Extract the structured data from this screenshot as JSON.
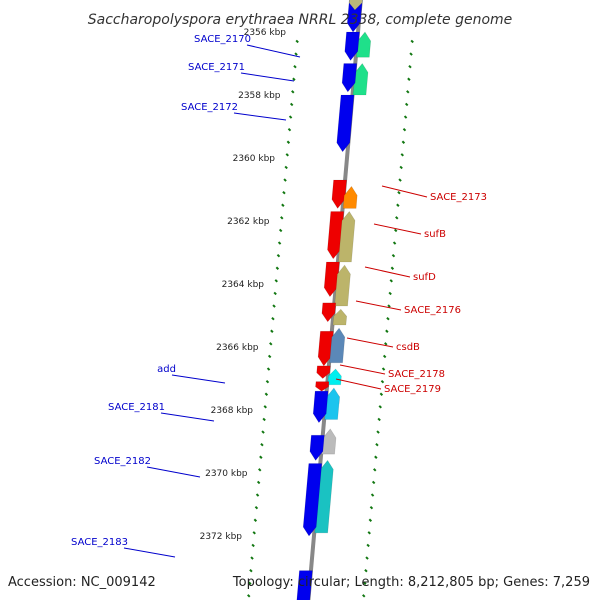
{
  "title": "Saccharopolyspora erythraea NRRL 2338, complete genome",
  "accession": "Accession: NC_009142",
  "topology": "Topology: circular; Length: 8,212,805 bp; Genes: 7,259",
  "colors": {
    "backbone": "#888888",
    "tick": "#117711",
    "label_left": "#0000cc",
    "label_right": "#cc0000",
    "leader_left": "#0000cc",
    "leader_right": "#cc0000"
  },
  "kbp_ticks": [
    {
      "text": "2356 kbp",
      "kb": 2356
    },
    {
      "text": "2358 kbp",
      "kb": 2358
    },
    {
      "text": "2360 kbp",
      "kb": 2360
    },
    {
      "text": "2362 kbp",
      "kb": 2362
    },
    {
      "text": "2364 kbp",
      "kb": 2364
    },
    {
      "text": "2366 kbp",
      "kb": 2366
    },
    {
      "text": "2368 kbp",
      "kb": 2368
    },
    {
      "text": "2370 kbp",
      "kb": 2370
    },
    {
      "text": "2372 kbp",
      "kb": 2372
    }
  ],
  "left_labels": [
    {
      "text": "SACE_2170"
    },
    {
      "text": "SACE_2171"
    },
    {
      "text": "SACE_2172"
    },
    {
      "text": "add"
    },
    {
      "text": "SACE_2181"
    },
    {
      "text": "SACE_2182"
    },
    {
      "text": "SACE_2183"
    }
  ],
  "right_labels": [
    {
      "text": "SACE_2173"
    },
    {
      "text": "sufB"
    },
    {
      "text": "sufD"
    },
    {
      "text": "SACE_2176"
    },
    {
      "text": "csdB"
    },
    {
      "text": "SACE_2178"
    },
    {
      "text": "SACE_2179"
    }
  ],
  "features": [
    {
      "strand": "plus",
      "color": "#0000ee",
      "start_kb": 2354.8,
      "end_kb": 2356.0
    },
    {
      "strand": "plus",
      "color": "#bcb87a",
      "start_kb": 2354.8,
      "end_kb": 2355.3
    },
    {
      "strand": "minus",
      "color": "#1fe08a",
      "start_kb": 2356.0,
      "end_kb": 2356.8
    },
    {
      "strand": "plus",
      "color": "#0000ee",
      "start_kb": 2356.0,
      "end_kb": 2356.9
    },
    {
      "strand": "minus",
      "color": "#1fe08a",
      "start_kb": 2357.0,
      "end_kb": 2358.0
    },
    {
      "strand": "plus",
      "color": "#0000ee",
      "start_kb": 2357.0,
      "end_kb": 2357.9
    },
    {
      "strand": "plus",
      "color": "#0000ee",
      "start_kb": 2358.0,
      "end_kb": 2359.8
    },
    {
      "strand": "plus",
      "color": "#ee0000",
      "start_kb": 2360.7,
      "end_kb": 2361.6
    },
    {
      "strand": "minus",
      "color": "#ff8a00",
      "start_kb": 2360.9,
      "end_kb": 2361.6
    },
    {
      "strand": "plus",
      "color": "#ee0000",
      "start_kb": 2361.7,
      "end_kb": 2363.2
    },
    {
      "strand": "minus",
      "color": "#bcb46a",
      "start_kb": 2361.7,
      "end_kb": 2363.3
    },
    {
      "strand": "plus",
      "color": "#ee0000",
      "start_kb": 2363.3,
      "end_kb": 2364.4
    },
    {
      "strand": "minus",
      "color": "#bcb46a",
      "start_kb": 2363.4,
      "end_kb": 2364.7
    },
    {
      "strand": "plus",
      "color": "#ee0000",
      "start_kb": 2364.6,
      "end_kb": 2365.2
    },
    {
      "strand": "minus",
      "color": "#bcb46a",
      "start_kb": 2364.8,
      "end_kb": 2365.3
    },
    {
      "strand": "plus",
      "color": "#ee0000",
      "start_kb": 2365.5,
      "end_kb": 2366.6
    },
    {
      "strand": "minus",
      "color": "#5b88b8",
      "start_kb": 2365.4,
      "end_kb": 2366.5
    },
    {
      "strand": "plus",
      "color": "#ee0000",
      "start_kb": 2366.6,
      "end_kb": 2367.0
    },
    {
      "strand": "minus",
      "color": "#00eeee",
      "start_kb": 2366.7,
      "end_kb": 2367.2
    },
    {
      "strand": "plus",
      "color": "#ee0000",
      "start_kb": 2367.1,
      "end_kb": 2367.4
    },
    {
      "strand": "minus",
      "color": "#bbbbbb",
      "start_kb": 2367.4,
      "end_kb": 2367.8
    },
    {
      "strand": "minus",
      "color": "#1cc4ee",
      "start_kb": 2367.3,
      "end_kb": 2368.3
    },
    {
      "strand": "plus",
      "color": "#0000ee",
      "start_kb": 2367.4,
      "end_kb": 2368.4
    },
    {
      "strand": "minus",
      "color": "#bbbbbb",
      "start_kb": 2368.6,
      "end_kb": 2369.4
    },
    {
      "strand": "plus",
      "color": "#0000ee",
      "start_kb": 2368.8,
      "end_kb": 2369.6
    },
    {
      "strand": "minus",
      "color": "#1ac2c2",
      "start_kb": 2369.6,
      "end_kb": 2371.9
    },
    {
      "strand": "plus",
      "color": "#0000ee",
      "start_kb": 2369.7,
      "end_kb": 2372.0
    },
    {
      "strand": "plus",
      "color": "#0000ee",
      "start_kb": 2373.1,
      "end_kb": 2374.8
    }
  ]
}
